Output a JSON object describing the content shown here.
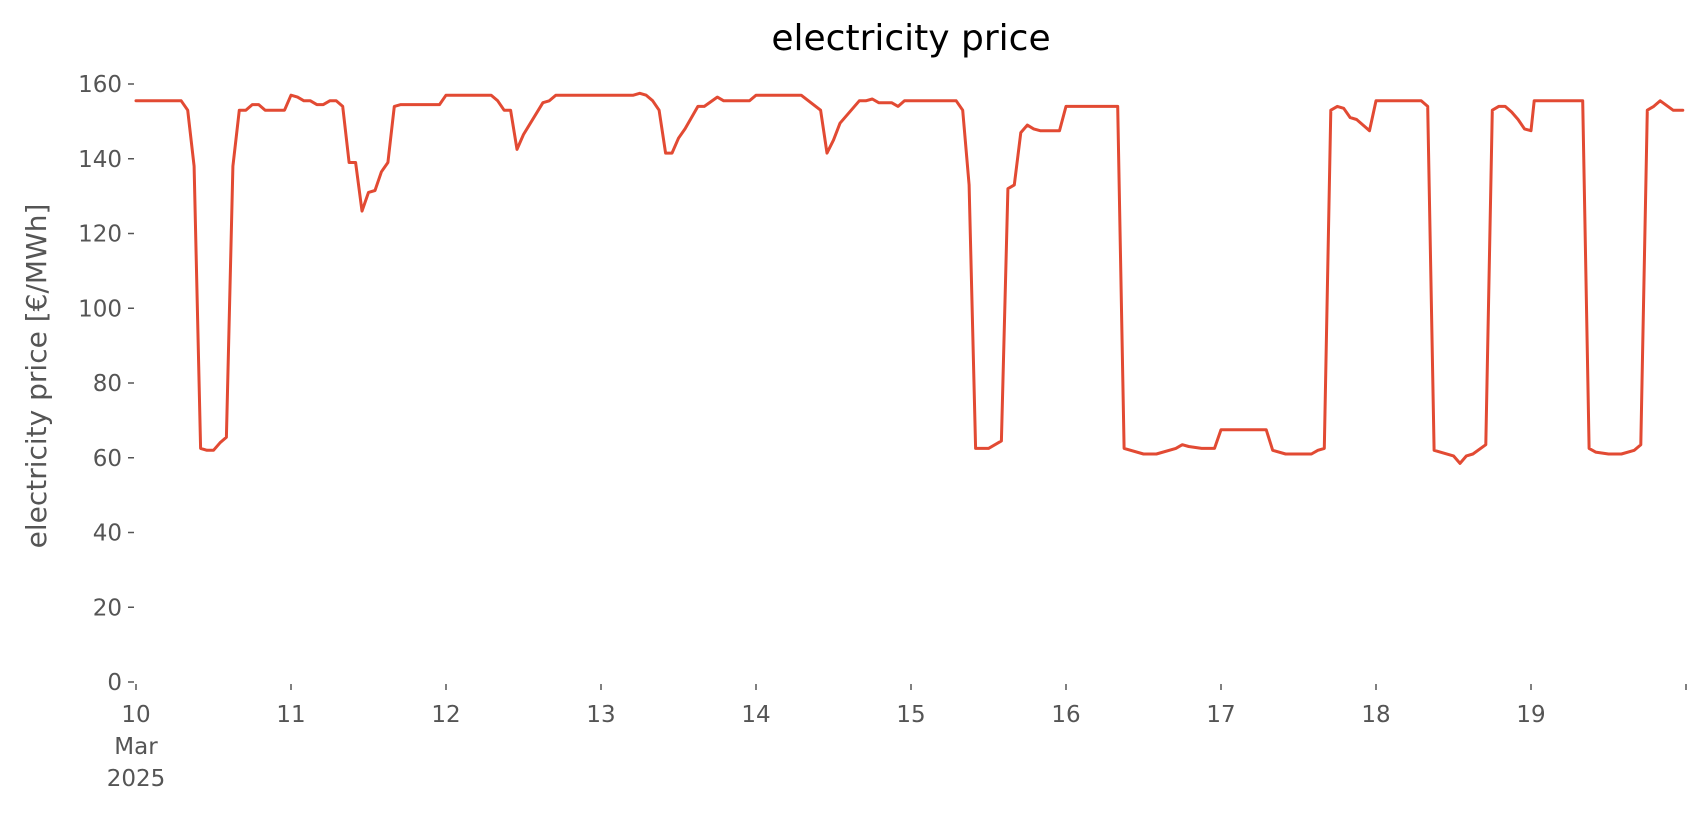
{
  "chart_data": {
    "type": "line",
    "title": "electricity price",
    "ylabel": "electricity price [€/MWh]",
    "xlabel": "",
    "ylim": [
      0,
      160
    ],
    "xlim": [
      "2025-03-10 00:00",
      "2025-03-20 00:00"
    ],
    "grid": false,
    "legend": "none",
    "colors": {
      "line": "#E24A33"
    },
    "y_ticks": [
      "0",
      "20",
      "40",
      "60",
      "80",
      "100",
      "120",
      "140",
      "160"
    ],
    "x_ticks": [
      {
        "date": "2025-03-10",
        "label": "10",
        "sub1": "Mar",
        "sub2": "2025"
      },
      {
        "date": "2025-03-11",
        "label": "11"
      },
      {
        "date": "2025-03-12",
        "label": "12"
      },
      {
        "date": "2025-03-13",
        "label": "13"
      },
      {
        "date": "2025-03-14",
        "label": "14"
      },
      {
        "date": "2025-03-15",
        "label": "15"
      },
      {
        "date": "2025-03-16",
        "label": "16"
      },
      {
        "date": "2025-03-17",
        "label": "17"
      },
      {
        "date": "2025-03-18",
        "label": "18"
      },
      {
        "date": "2025-03-19",
        "label": "19"
      },
      {
        "date": "2025-03-20",
        "label": ""
      }
    ],
    "series": [
      {
        "points": [
          [
            "2025-03-10 00:00",
            155.5
          ],
          [
            "2025-03-10 07:00",
            155.5
          ],
          [
            "2025-03-10 08:00",
            153
          ],
          [
            "2025-03-10 09:00",
            138
          ],
          [
            "2025-03-10 10:00",
            62.5
          ],
          [
            "2025-03-10 11:00",
            62
          ],
          [
            "2025-03-10 12:00",
            62
          ],
          [
            "2025-03-10 13:00",
            64
          ],
          [
            "2025-03-10 14:00",
            65.5
          ],
          [
            "2025-03-10 15:00",
            138
          ],
          [
            "2025-03-10 16:00",
            153
          ],
          [
            "2025-03-10 17:00",
            153
          ],
          [
            "2025-03-10 18:00",
            154.5
          ],
          [
            "2025-03-10 19:00",
            154.5
          ],
          [
            "2025-03-10 20:00",
            153
          ],
          [
            "2025-03-10 23:00",
            153
          ],
          [
            "2025-03-11 00:00",
            157
          ],
          [
            "2025-03-11 01:00",
            156.5
          ],
          [
            "2025-03-11 02:00",
            155.5
          ],
          [
            "2025-03-11 03:00",
            155.5
          ],
          [
            "2025-03-11 04:00",
            154.5
          ],
          [
            "2025-03-11 05:00",
            154.5
          ],
          [
            "2025-03-11 06:00",
            155.5
          ],
          [
            "2025-03-11 07:00",
            155.5
          ],
          [
            "2025-03-11 08:00",
            154
          ],
          [
            "2025-03-11 09:00",
            139
          ],
          [
            "2025-03-11 10:00",
            139
          ],
          [
            "2025-03-11 11:00",
            126
          ],
          [
            "2025-03-11 12:00",
            131
          ],
          [
            "2025-03-11 13:00",
            131.5
          ],
          [
            "2025-03-11 14:00",
            136.5
          ],
          [
            "2025-03-11 15:00",
            139
          ],
          [
            "2025-03-11 16:00",
            154
          ],
          [
            "2025-03-11 17:00",
            154.5
          ],
          [
            "2025-03-11 23:00",
            154.5
          ],
          [
            "2025-03-12 00:00",
            157
          ],
          [
            "2025-03-12 07:00",
            157
          ],
          [
            "2025-03-12 08:00",
            155.5
          ],
          [
            "2025-03-12 09:00",
            153
          ],
          [
            "2025-03-12 10:00",
            153
          ],
          [
            "2025-03-12 11:00",
            142.5
          ],
          [
            "2025-03-12 12:00",
            146.5
          ],
          [
            "2025-03-12 15:00",
            155
          ],
          [
            "2025-03-12 16:00",
            155.5
          ],
          [
            "2025-03-12 17:00",
            157
          ],
          [
            "2025-03-12 23:00",
            157
          ],
          [
            "2025-03-13 00:00",
            157
          ],
          [
            "2025-03-13 05:00",
            157
          ],
          [
            "2025-03-13 06:00",
            157.5
          ],
          [
            "2025-03-13 07:00",
            157
          ],
          [
            "2025-03-13 08:00",
            155.5
          ],
          [
            "2025-03-13 09:00",
            153
          ],
          [
            "2025-03-13 10:00",
            141.5
          ],
          [
            "2025-03-13 11:00",
            141.5
          ],
          [
            "2025-03-13 12:00",
            145.5
          ],
          [
            "2025-03-13 13:00",
            148
          ],
          [
            "2025-03-13 15:00",
            154
          ],
          [
            "2025-03-13 16:00",
            154
          ],
          [
            "2025-03-13 18:00",
            156.5
          ],
          [
            "2025-03-13 19:00",
            155.5
          ],
          [
            "2025-03-13 20:00",
            155.5
          ],
          [
            "2025-03-13 23:00",
            155.5
          ],
          [
            "2025-03-14 00:00",
            157
          ],
          [
            "2025-03-14 07:00",
            157
          ],
          [
            "2025-03-14 10:00",
            153
          ],
          [
            "2025-03-14 11:00",
            141.5
          ],
          [
            "2025-03-14 12:00",
            145
          ],
          [
            "2025-03-14 13:00",
            149.5
          ],
          [
            "2025-03-14 16:00",
            155.5
          ],
          [
            "2025-03-14 17:00",
            155.5
          ],
          [
            "2025-03-14 18:00",
            156
          ],
          [
            "2025-03-14 19:00",
            155
          ],
          [
            "2025-03-14 20:00",
            155
          ],
          [
            "2025-03-14 21:00",
            155
          ],
          [
            "2025-03-14 22:00",
            154
          ],
          [
            "2025-03-14 23:00",
            155.5
          ],
          [
            "2025-03-15 00:00",
            155.5
          ],
          [
            "2025-03-15 07:00",
            155.5
          ],
          [
            "2025-03-15 08:00",
            153
          ],
          [
            "2025-03-15 09:00",
            133
          ],
          [
            "2025-03-15 10:00",
            62.5
          ],
          [
            "2025-03-15 11:00",
            62.5
          ],
          [
            "2025-03-15 12:00",
            62.5
          ],
          [
            "2025-03-15 14:00",
            64.5
          ],
          [
            "2025-03-15 15:00",
            132
          ],
          [
            "2025-03-15 16:00",
            133
          ],
          [
            "2025-03-15 17:00",
            147
          ],
          [
            "2025-03-15 18:00",
            149
          ],
          [
            "2025-03-15 19:00",
            148
          ],
          [
            "2025-03-15 20:00",
            147.5
          ],
          [
            "2025-03-15 23:00",
            147.5
          ],
          [
            "2025-03-16 00:00",
            154
          ],
          [
            "2025-03-16 07:00",
            154
          ],
          [
            "2025-03-16 08:00",
            154
          ],
          [
            "2025-03-16 09:00",
            62.5
          ],
          [
            "2025-03-16 12:00",
            61
          ],
          [
            "2025-03-16 14:00",
            61
          ],
          [
            "2025-03-16 17:00",
            62.5
          ],
          [
            "2025-03-16 18:00",
            63.5
          ],
          [
            "2025-03-16 19:00",
            63
          ],
          [
            "2025-03-16 21:00",
            62.5
          ],
          [
            "2025-03-16 23:00",
            62.5
          ],
          [
            "2025-03-17 00:00",
            67.5
          ],
          [
            "2025-03-17 07:00",
            67.5
          ],
          [
            "2025-03-17 08:00",
            62
          ],
          [
            "2025-03-17 10:00",
            61
          ],
          [
            "2025-03-17 14:00",
            61
          ],
          [
            "2025-03-17 15:00",
            62
          ],
          [
            "2025-03-17 16:00",
            62.5
          ],
          [
            "2025-03-17 17:00",
            153
          ],
          [
            "2025-03-17 18:00",
            154
          ],
          [
            "2025-03-17 19:00",
            153.5
          ],
          [
            "2025-03-17 20:00",
            151
          ],
          [
            "2025-03-17 21:00",
            150.5
          ],
          [
            "2025-03-17 22:00",
            149
          ],
          [
            "2025-03-17 23:00",
            147.5
          ],
          [
            "2025-03-18 00:00",
            155.5
          ],
          [
            "2025-03-18 07:00",
            155.5
          ],
          [
            "2025-03-18 08:00",
            154
          ],
          [
            "2025-03-18 09:00",
            62
          ],
          [
            "2025-03-18 12:00",
            60.5
          ],
          [
            "2025-03-18 13:00",
            58.5
          ],
          [
            "2025-03-18 14:00",
            60.5
          ],
          [
            "2025-03-18 15:00",
            61
          ],
          [
            "2025-03-18 17:00",
            63.5
          ],
          [
            "2025-03-18 18:00",
            153
          ],
          [
            "2025-03-18 19:00",
            154
          ],
          [
            "2025-03-18 20:00",
            154
          ],
          [
            "2025-03-18 21:00",
            152.5
          ],
          [
            "2025-03-18 22:00",
            150.5
          ],
          [
            "2025-03-18 23:00",
            148
          ],
          [
            "2025-03-19 00:00",
            147.5
          ],
          [
            "2025-03-19 00:30",
            155.5
          ],
          [
            "2025-03-19 07:00",
            155.5
          ],
          [
            "2025-03-19 08:00",
            155.5
          ],
          [
            "2025-03-19 09:00",
            62.5
          ],
          [
            "2025-03-19 10:00",
            61.5
          ],
          [
            "2025-03-19 12:00",
            61
          ],
          [
            "2025-03-19 14:00",
            61
          ],
          [
            "2025-03-19 16:00",
            62
          ],
          [
            "2025-03-19 17:00",
            63.5
          ],
          [
            "2025-03-19 18:00",
            153
          ],
          [
            "2025-03-19 19:00",
            154
          ],
          [
            "2025-03-19 20:00",
            155.5
          ],
          [
            "2025-03-19 22:00",
            153
          ],
          [
            "2025-03-19 23:30",
            153
          ]
        ]
      }
    ]
  }
}
